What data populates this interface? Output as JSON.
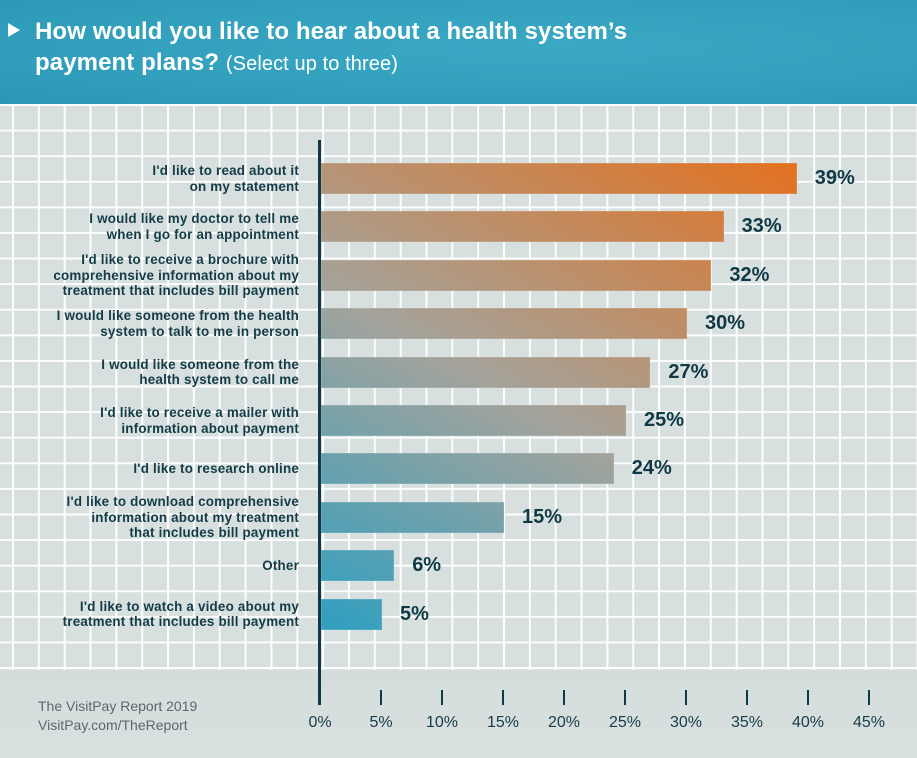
{
  "header": {
    "title": "How would you like to hear about a health system’s payment plans?",
    "subtitle": "(Select up to three)"
  },
  "footer": {
    "source_line1": "The VisitPay Report 2019",
    "source_line2": "VisitPay.com/TheReport"
  },
  "colors": {
    "header_bg": "#33a1bd",
    "bar_start": "#2f9fc0",
    "bar_mid": "#a3a39c",
    "bar_end": "#e56f1a",
    "text_dark": "#0f3945",
    "grid_bg": "#d7dfdf"
  },
  "chart_data": {
    "type": "bar",
    "orientation": "horizontal",
    "title": "How would you like to hear about a health system’s payment plans? (Select up to three)",
    "xlabel": "",
    "ylabel": "",
    "xlim": [
      0,
      45
    ],
    "grid": true,
    "categories": [
      [
        "I'd like to read about it",
        "on my statement"
      ],
      [
        "I would like my doctor to tell me",
        "when I go for an appointment"
      ],
      [
        "I'd like to receive a brochure with",
        "comprehensive information about my",
        "treatment that includes bill payment"
      ],
      [
        "I would like someone from the health",
        "system to talk to me in person"
      ],
      [
        "I would like someone from the",
        "health system to call me"
      ],
      [
        "I'd like to receive a mailer with",
        "information about payment"
      ],
      [
        "I'd like to research online"
      ],
      [
        "I'd like to download comprehensive",
        "information about my treatment",
        "that includes bill payment"
      ],
      [
        "Other"
      ],
      [
        "I'd like to watch a video about my",
        "treatment that includes bill payment"
      ]
    ],
    "values": [
      39,
      33,
      32,
      30,
      27,
      25,
      24,
      15,
      6,
      5
    ],
    "value_labels": [
      "39%",
      "33%",
      "32%",
      "30%",
      "27%",
      "25%",
      "24%",
      "15%",
      "6%",
      "5%"
    ],
    "x_ticks": [
      0,
      5,
      10,
      15,
      20,
      25,
      30,
      35,
      40,
      45
    ],
    "x_tick_labels": [
      "0%",
      "5%",
      "10%",
      "15%",
      "20%",
      "25%",
      "30%",
      "35%",
      "40%",
      "45%"
    ]
  }
}
